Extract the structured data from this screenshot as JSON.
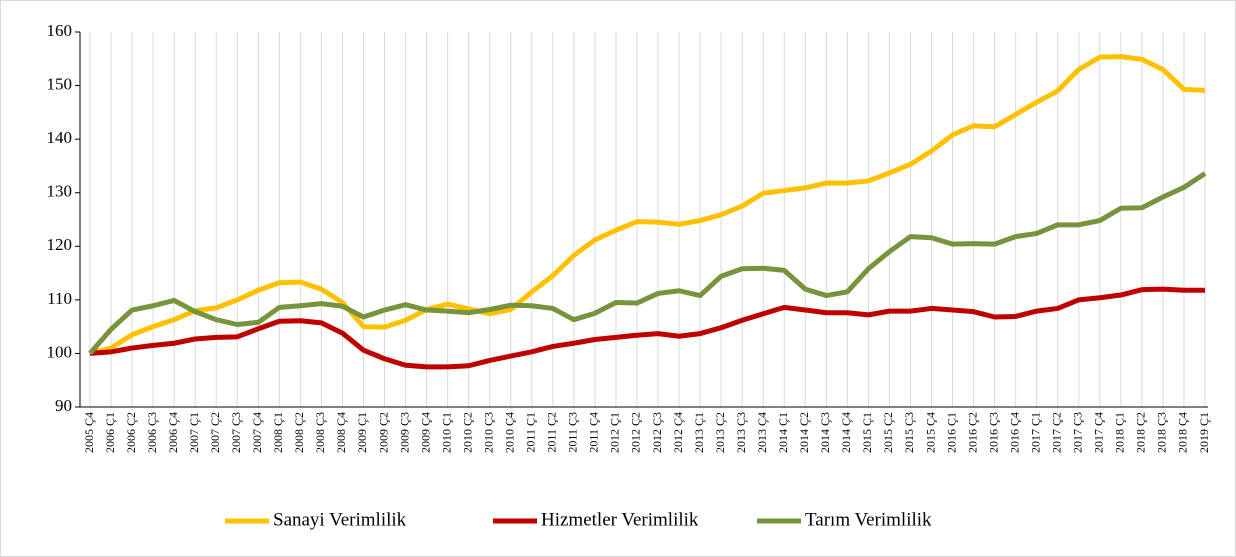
{
  "chart_data": {
    "type": "line",
    "categories": [
      "2005 Ç4",
      "2006 Ç1",
      "2006 Ç2",
      "2006 Ç3",
      "2006 Ç4",
      "2007 Ç1",
      "2007 Ç2",
      "2007 Ç3",
      "2007 Ç4",
      "2008 Ç1",
      "2008 Ç2",
      "2008 Ç3",
      "2008 Ç4",
      "2009 Ç1",
      "2009 Ç2",
      "2009 Ç3",
      "2009 Ç4",
      "2010 Ç1",
      "2010 Ç2",
      "2010 Ç3",
      "2010 Ç4",
      "2011 Ç1",
      "2011 Ç2",
      "2011 Ç3",
      "2011 Ç4",
      "2012 Ç1",
      "2012 Ç2",
      "2012 Ç3",
      "2012 Ç4",
      "2013 Ç1",
      "2013 Ç2",
      "2013 Ç3",
      "2013 Ç4",
      "2014 Ç1",
      "2014 Ç2",
      "2014 Ç3",
      "2014 Ç4",
      "2015 Ç1",
      "2015 Ç2",
      "2015 Ç3",
      "2015 Ç4",
      "2016 Ç1",
      "2016 Ç2",
      "2016 Ç3",
      "2016 Ç4",
      "2017 Ç1",
      "2017 Ç2",
      "2017 Ç3",
      "2017 Ç4",
      "2018 Ç1",
      "2018 Ç2",
      "2018 Ç3",
      "2018 Ç4",
      "2019 Ç1"
    ],
    "series": [
      {
        "name": "Sanayi Verimlilik",
        "color": "#ffc000",
        "values": [
          100,
          101,
          103.5,
          105,
          106.3,
          108,
          108.5,
          110,
          111.8,
          113.2,
          113.3,
          112,
          109.5,
          105,
          104.9,
          106.2,
          108.2,
          109.2,
          108.3,
          107.4,
          108.2,
          111.5,
          114.5,
          118.3,
          121.2,
          123,
          124.6,
          124.5,
          124.1,
          124.8,
          125.9,
          127.5,
          129.9,
          130.4,
          130.9,
          131.8,
          131.8,
          132.2,
          133.7,
          135.3,
          137.8,
          140.8,
          142.5,
          142.3,
          144.6,
          146.9,
          149,
          153,
          155.3,
          155.4,
          154.9,
          153,
          149.3,
          149.1
        ]
      },
      {
        "name": "Hizmetler Verimlilik",
        "color": "#c00000",
        "values": [
          100,
          100.3,
          101,
          101.5,
          101.9,
          102.7,
          103,
          103.1,
          104.6,
          106,
          106.1,
          105.7,
          103.8,
          100.6,
          99,
          97.8,
          97.5,
          97.5,
          97.7,
          98.7,
          99.5,
          100.3,
          101.3,
          101.9,
          102.6,
          103,
          103.4,
          103.7,
          103.2,
          103.7,
          104.8,
          106.2,
          107.4,
          108.6,
          108.1,
          107.6,
          107.6,
          107.2,
          107.9,
          107.9,
          108.4,
          108.1,
          107.8,
          106.8,
          106.9,
          107.9,
          108.4,
          110,
          110.4,
          110.9,
          111.9,
          112,
          111.8,
          111.8
        ]
      },
      {
        "name": "Tarım Verimlilik",
        "color": "#77933c",
        "values": [
          100,
          104.5,
          108.1,
          108.9,
          109.9,
          107.8,
          106.3,
          105.4,
          105.8,
          108.6,
          108.9,
          109.3,
          108.8,
          106.8,
          108.1,
          109.1,
          108.1,
          107.9,
          107.6,
          108.2,
          109,
          108.9,
          108.4,
          106.3,
          107.5,
          109.5,
          109.4,
          111.2,
          111.7,
          110.8,
          114.4,
          115.8,
          115.9,
          115.5,
          112,
          110.8,
          111.5,
          115.8,
          119,
          121.8,
          121.6,
          120.4,
          120.5,
          120.4,
          121.8,
          122.4,
          124,
          124,
          124.8,
          127.1,
          127.2,
          129.2,
          131,
          133.6
        ]
      }
    ],
    "ylim": [
      90,
      160
    ],
    "yticks": [
      90,
      100,
      110,
      120,
      130,
      140,
      150,
      160
    ],
    "grid": true,
    "legend": "bottom"
  }
}
